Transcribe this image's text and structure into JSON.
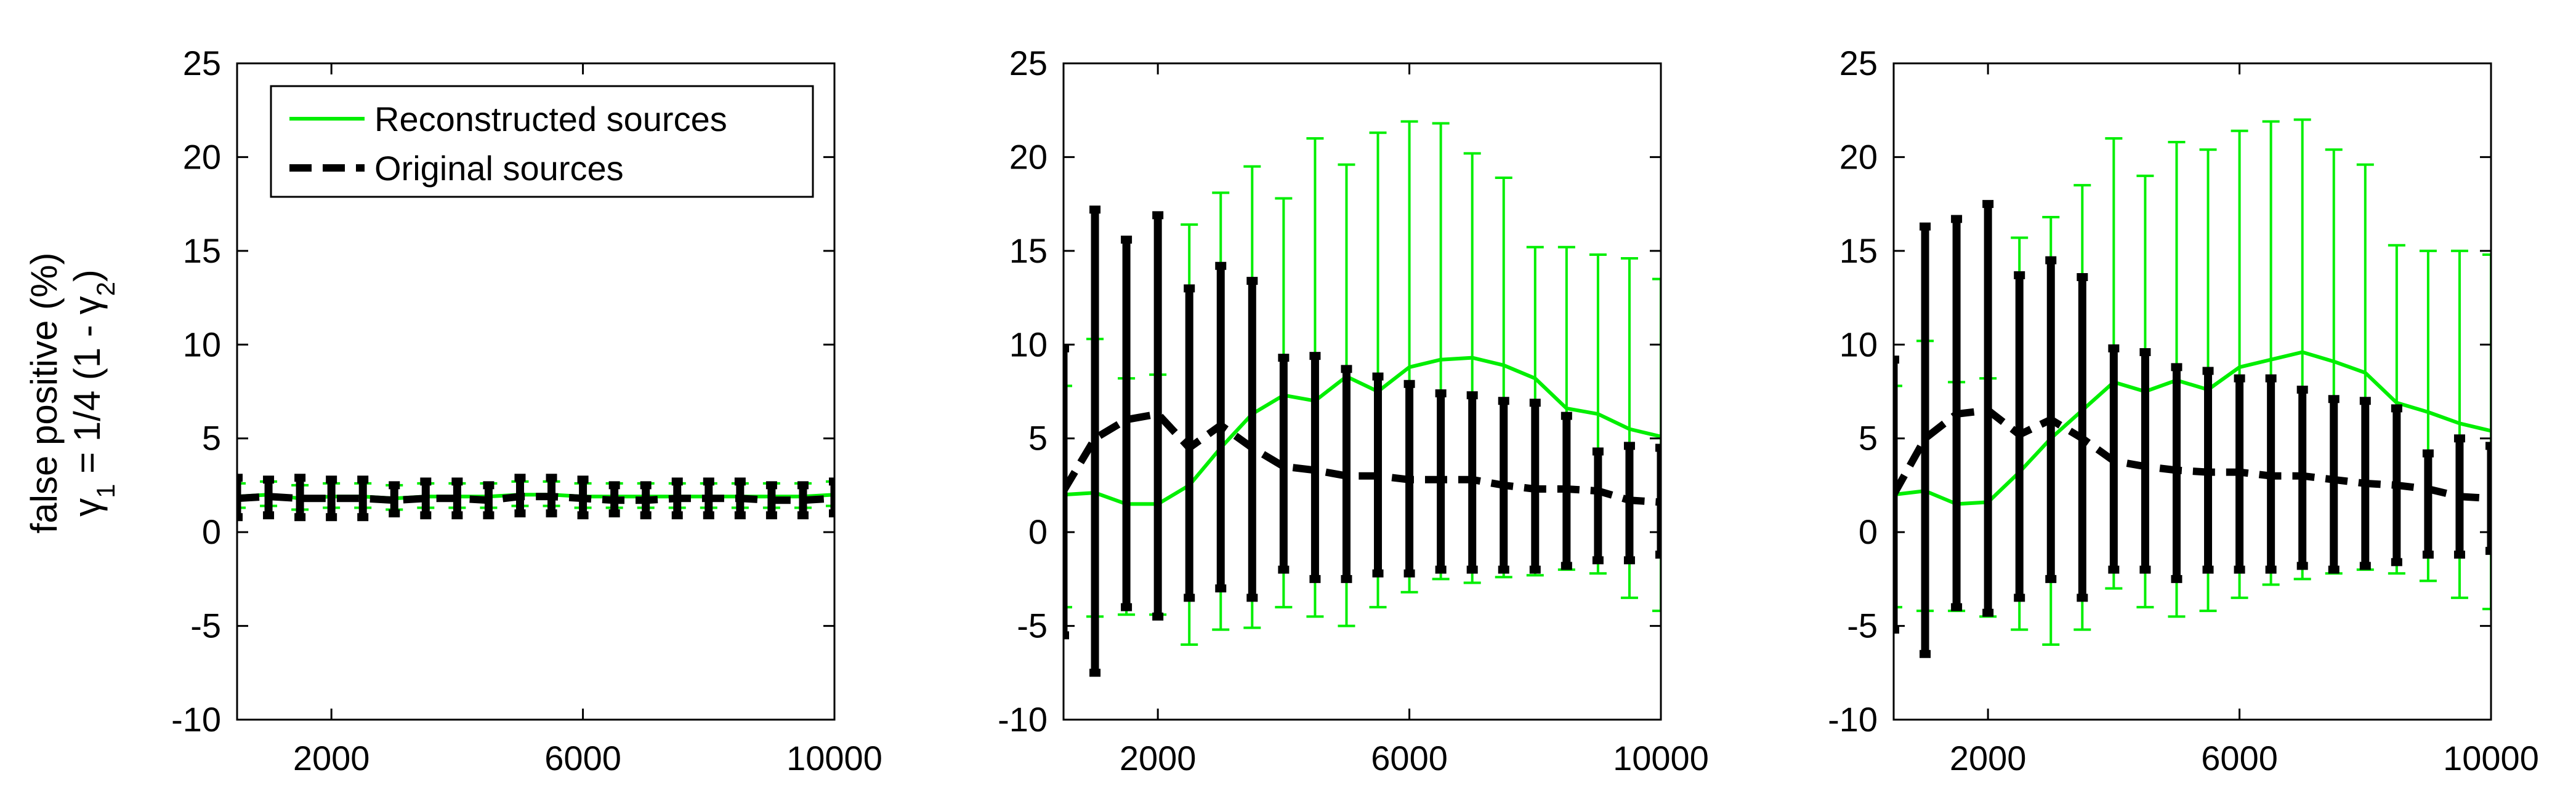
{
  "figure": {
    "ylabel_line1": "false positive (%)",
    "ylabel_line2_parts": [
      "γ",
      "1",
      " = 1/4 (1 - γ",
      "2",
      ")"
    ]
  },
  "colors": {
    "reconstructed": "#00ee00",
    "original": "#000000"
  },
  "legend": {
    "placement": "top-left (first panel)",
    "entries": [
      {
        "label": "Reconstructed sources",
        "style": "solid",
        "color": "#00ee00"
      },
      {
        "label": "Original sources",
        "style": "dashed",
        "color": "#000000"
      }
    ]
  },
  "chart_data": [
    {
      "type": "line",
      "error_bars": true,
      "xlim": [
        500,
        10000
      ],
      "ylim": [
        -10,
        25
      ],
      "xticks": [
        2000,
        6000,
        10000
      ],
      "yticks": [
        -10,
        -5,
        0,
        5,
        10,
        15,
        20,
        25
      ],
      "grid": false,
      "legend": true,
      "series": [
        {
          "name": "Reconstructed sources",
          "x": [
            500,
            1000,
            1500,
            2000,
            2500,
            3000,
            3500,
            4000,
            4500,
            5000,
            5500,
            6000,
            6500,
            7000,
            7500,
            8000,
            8500,
            9000,
            9500,
            10000
          ],
          "y": [
            1.9,
            2.0,
            1.8,
            1.9,
            1.9,
            1.8,
            1.9,
            1.9,
            1.9,
            2.0,
            2.0,
            1.9,
            1.9,
            1.9,
            1.9,
            1.9,
            1.9,
            1.9,
            1.9,
            2.0
          ],
          "lower": [
            1.3,
            1.4,
            1.2,
            1.3,
            1.3,
            1.2,
            1.3,
            1.3,
            1.3,
            1.4,
            1.4,
            1.3,
            1.3,
            1.3,
            1.3,
            1.3,
            1.3,
            1.3,
            1.3,
            1.4
          ],
          "upper": [
            2.6,
            2.7,
            2.5,
            2.6,
            2.6,
            2.5,
            2.6,
            2.6,
            2.6,
            2.7,
            2.7,
            2.6,
            2.6,
            2.6,
            2.6,
            2.6,
            2.6,
            2.6,
            2.6,
            2.7
          ]
        },
        {
          "name": "Original sources",
          "x": [
            500,
            1000,
            1500,
            2000,
            2500,
            3000,
            3500,
            4000,
            4500,
            5000,
            5500,
            6000,
            6500,
            7000,
            7500,
            8000,
            8500,
            9000,
            9500,
            10000
          ],
          "y": [
            1.8,
            1.9,
            1.8,
            1.8,
            1.8,
            1.7,
            1.8,
            1.8,
            1.7,
            1.9,
            1.9,
            1.8,
            1.7,
            1.7,
            1.8,
            1.8,
            1.8,
            1.7,
            1.7,
            1.8
          ],
          "lower": [
            0.8,
            0.9,
            0.8,
            0.8,
            0.8,
            1.0,
            0.9,
            0.9,
            0.9,
            1.0,
            1.0,
            0.9,
            1.0,
            0.9,
            0.9,
            0.9,
            0.9,
            0.9,
            0.9,
            1.0
          ],
          "upper": [
            2.9,
            2.8,
            2.9,
            2.8,
            2.8,
            2.5,
            2.7,
            2.7,
            2.5,
            2.9,
            2.9,
            2.8,
            2.5,
            2.5,
            2.7,
            2.7,
            2.7,
            2.5,
            2.5,
            2.7
          ]
        }
      ]
    },
    {
      "type": "line",
      "error_bars": true,
      "xlim": [
        500,
        10000
      ],
      "ylim": [
        -10,
        25
      ],
      "xticks": [
        2000,
        6000,
        10000
      ],
      "yticks": [
        -10,
        -5,
        0,
        5,
        10,
        15,
        20,
        25
      ],
      "grid": false,
      "legend": false,
      "series": [
        {
          "name": "Reconstructed sources",
          "x": [
            500,
            1000,
            1500,
            2000,
            2500,
            3000,
            3500,
            4000,
            4500,
            5000,
            5500,
            6000,
            6500,
            7000,
            7500,
            8000,
            8500,
            9000,
            9500,
            10000
          ],
          "y": [
            2.0,
            2.1,
            1.5,
            1.5,
            2.5,
            4.5,
            6.3,
            7.3,
            7.0,
            8.3,
            7.5,
            8.8,
            9.2,
            9.3,
            8.9,
            8.2,
            6.6,
            6.3,
            5.5,
            5.1
          ],
          "lower": [
            -4.0,
            -4.5,
            -4.4,
            -4.4,
            -6.0,
            -5.2,
            -5.1,
            -4.0,
            -4.5,
            -5.0,
            -4.0,
            -3.2,
            -2.5,
            -2.7,
            -2.4,
            -2.3,
            -2.0,
            -2.2,
            -3.5,
            -4.2
          ],
          "upper": [
            7.8,
            10.3,
            8.2,
            8.4,
            16.4,
            18.1,
            19.5,
            17.8,
            21.0,
            19.6,
            21.3,
            21.9,
            21.8,
            20.2,
            18.9,
            15.2,
            15.2,
            14.8,
            14.6,
            13.5
          ]
        },
        {
          "name": "Original sources",
          "x": [
            500,
            1000,
            1500,
            2000,
            2500,
            3000,
            3500,
            4000,
            4500,
            5000,
            5500,
            6000,
            6500,
            7000,
            7500,
            8000,
            8500,
            9000,
            9500,
            10000
          ],
          "y": [
            2.2,
            5.0,
            6.0,
            6.3,
            4.5,
            5.7,
            4.5,
            3.5,
            3.3,
            3.0,
            3.0,
            2.8,
            2.8,
            2.8,
            2.5,
            2.3,
            2.3,
            2.2,
            1.7,
            1.6
          ],
          "lower": [
            -5.5,
            -7.5,
            -4.0,
            -4.5,
            -3.5,
            -3.0,
            -3.5,
            -2.0,
            -2.5,
            -2.5,
            -2.2,
            -2.2,
            -2.0,
            -2.0,
            -2.0,
            -2.0,
            -1.8,
            -1.5,
            -1.5,
            -1.2
          ],
          "upper": [
            9.8,
            17.2,
            15.6,
            16.9,
            13.0,
            14.2,
            13.4,
            9.3,
            9.4,
            8.7,
            8.3,
            7.9,
            7.4,
            7.3,
            7.0,
            6.9,
            6.2,
            4.3,
            4.6,
            4.5
          ]
        }
      ]
    },
    {
      "type": "line",
      "error_bars": true,
      "xlim": [
        500,
        10000
      ],
      "ylim": [
        -10,
        25
      ],
      "xticks": [
        2000,
        6000,
        10000
      ],
      "yticks": [
        -10,
        -5,
        0,
        5,
        10,
        15,
        20,
        25
      ],
      "grid": false,
      "legend": false,
      "series": [
        {
          "name": "Reconstructed sources",
          "x": [
            500,
            1000,
            1500,
            2000,
            2500,
            3000,
            3500,
            4000,
            4500,
            5000,
            5500,
            6000,
            6500,
            7000,
            7500,
            8000,
            8500,
            9000,
            9500,
            10000
          ],
          "y": [
            2.0,
            2.2,
            1.5,
            1.6,
            3.2,
            5.0,
            6.5,
            8.0,
            7.5,
            8.1,
            7.6,
            8.8,
            9.2,
            9.6,
            9.1,
            8.5,
            6.9,
            6.4,
            5.8,
            5.4
          ],
          "lower": [
            -4.0,
            -4.2,
            -4.2,
            -4.5,
            -5.2,
            -6.0,
            -5.2,
            -3.0,
            -4.0,
            -4.5,
            -4.2,
            -3.5,
            -2.8,
            -2.5,
            -2.2,
            -2.0,
            -2.2,
            -2.6,
            -3.5,
            -4.1
          ],
          "upper": [
            7.8,
            10.2,
            8.0,
            8.2,
            15.7,
            16.8,
            18.5,
            21.0,
            19.0,
            20.8,
            20.4,
            21.4,
            21.9,
            22.0,
            20.4,
            19.6,
            15.3,
            15.0,
            15.0,
            14.8
          ]
        },
        {
          "name": "Original sources",
          "x": [
            500,
            1000,
            1500,
            2000,
            2500,
            3000,
            3500,
            4000,
            4500,
            5000,
            5500,
            6000,
            6500,
            7000,
            7500,
            8000,
            8500,
            9000,
            9500,
            10000
          ],
          "y": [
            2.0,
            5.0,
            6.3,
            6.5,
            5.2,
            6.0,
            5.0,
            3.8,
            3.5,
            3.3,
            3.2,
            3.2,
            3.0,
            3.0,
            2.8,
            2.6,
            2.5,
            2.3,
            1.9,
            1.8
          ],
          "lower": [
            -5.2,
            -6.5,
            -4.0,
            -4.3,
            -3.5,
            -2.5,
            -3.5,
            -2.0,
            -2.0,
            -2.5,
            -2.0,
            -2.0,
            -2.0,
            -1.8,
            -2.0,
            -1.8,
            -1.6,
            -1.2,
            -1.2,
            -1.0
          ],
          "upper": [
            9.2,
            16.3,
            16.7,
            17.5,
            13.7,
            14.5,
            13.6,
            9.8,
            9.6,
            8.8,
            8.6,
            8.2,
            8.2,
            7.6,
            7.1,
            7.0,
            6.6,
            4.2,
            5.0,
            4.6
          ]
        }
      ]
    }
  ]
}
